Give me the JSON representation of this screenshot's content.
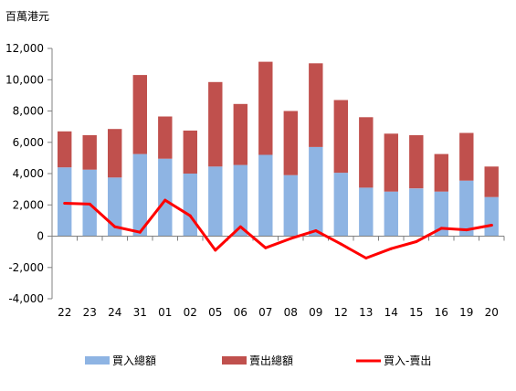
{
  "chart_data": {
    "type": "bar",
    "stacked": true,
    "unit_label": "百萬港元",
    "categories": [
      "22",
      "23",
      "24",
      "31",
      "01",
      "02",
      "05",
      "06",
      "07",
      "08",
      "09",
      "12",
      "13",
      "14",
      "15",
      "16",
      "19",
      "20"
    ],
    "ylim": [
      -4000,
      12000
    ],
    "yticks": [
      -4000,
      -2000,
      0,
      2000,
      4000,
      6000,
      8000,
      10000,
      12000
    ],
    "ytick_labels": [
      "-4,000",
      "-2,000",
      "0",
      "2,000",
      "4,000",
      "6,000",
      "8,000",
      "10,000",
      "12,000"
    ],
    "grid": false,
    "legend_position": "bottom",
    "series": [
      {
        "name": "買入總額",
        "kind": "bar",
        "color": "#8EB4E3",
        "values": [
          4400,
          4250,
          3750,
          5250,
          4950,
          4000,
          4450,
          4550,
          5200,
          3900,
          5700,
          4050,
          3100,
          2850,
          3050,
          2850,
          3550,
          2500
        ]
      },
      {
        "name": "賣出總額",
        "kind": "bar",
        "color": "#C0504D",
        "values": [
          2300,
          2200,
          3100,
          5050,
          2700,
          2750,
          5400,
          3900,
          5950,
          4100,
          5350,
          4650,
          4500,
          3700,
          3400,
          2400,
          3050,
          1950
        ]
      },
      {
        "name": "買入-賣出",
        "kind": "line",
        "color": "#FF0000",
        "values": [
          2100,
          2050,
          600,
          250,
          2300,
          1300,
          -900,
          600,
          -750,
          -150,
          350,
          -500,
          -1400,
          -800,
          -350,
          500,
          400,
          700
        ]
      }
    ]
  }
}
